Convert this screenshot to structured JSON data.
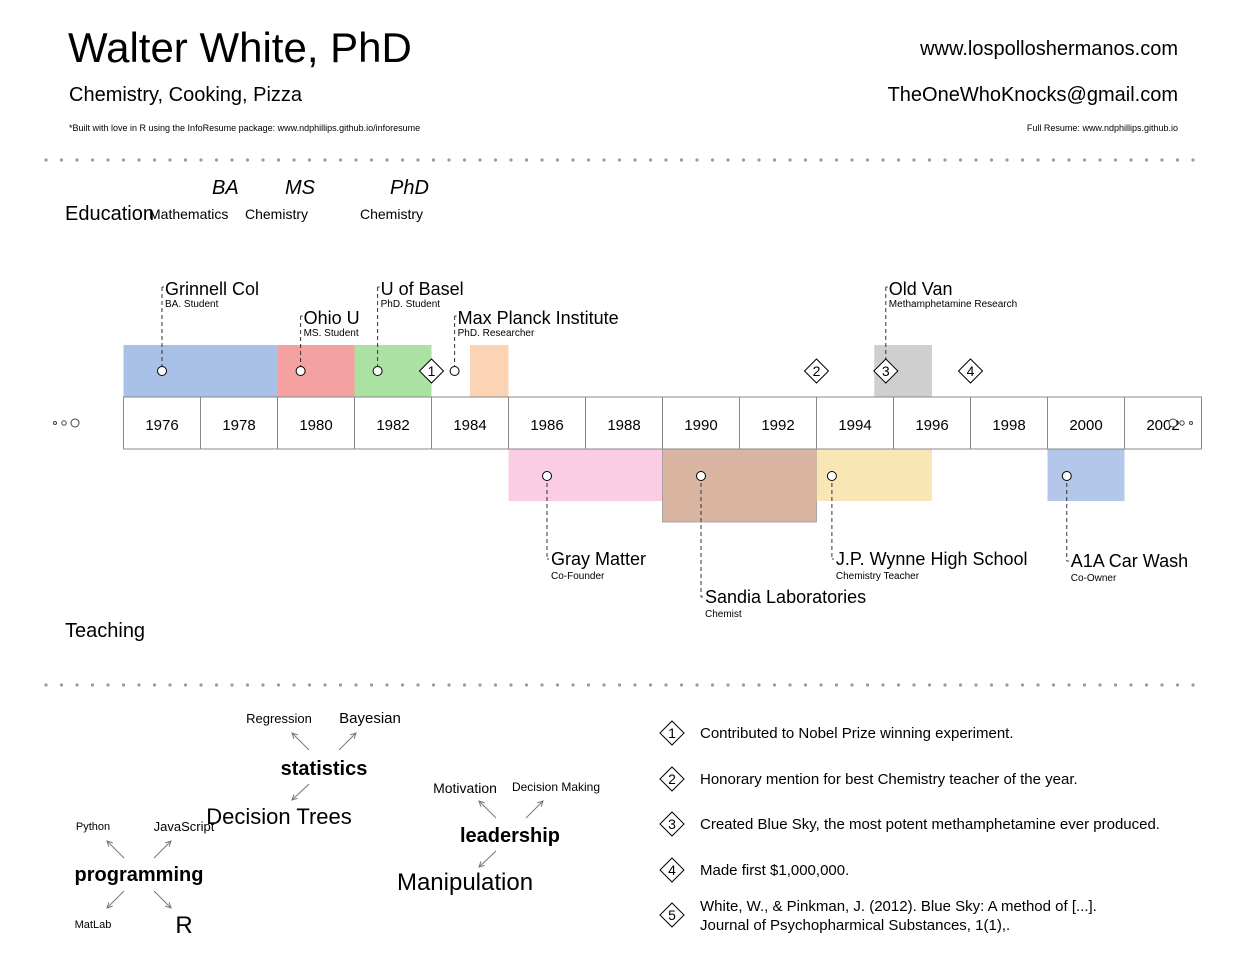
{
  "header": {
    "name": "Walter White, PhD",
    "interests": "Chemistry, Cooking, Pizza",
    "footnote": "*Built with love in R using the InfoResume package: www.ndphillips.github.io/inforesume",
    "website": "www.lospolloshermanos.com",
    "email": "TheOneWhoKnocks@gmail.com",
    "full_resume": "Full Resume: www.ndphillips.github.io"
  },
  "education": {
    "label": "Education",
    "degrees": [
      {
        "degree": "BA",
        "field": "Mathematics"
      },
      {
        "degree": "MS",
        "field": "Chemistry"
      },
      {
        "degree": "PhD",
        "field": "Chemistry"
      }
    ]
  },
  "teaching": {
    "label": "Teaching"
  },
  "timeline": {
    "years": [
      "1976",
      "1978",
      "1980",
      "1982",
      "1984",
      "1986",
      "1988",
      "1990",
      "1992",
      "1994",
      "1996",
      "1998",
      "2000",
      "2002"
    ],
    "upper": [
      {
        "title": "Grinnell Col",
        "role": "BA. Student",
        "start": 1976,
        "end": 1980,
        "marker": 1977,
        "label_tier": 0,
        "color": "#a4bde6"
      },
      {
        "title": "Ohio U",
        "role": "MS. Student",
        "start": 1980,
        "end": 1982,
        "marker": 1980.6,
        "label_tier": 1,
        "color": "#f59c9c"
      },
      {
        "title": "U of Basel",
        "role": "PhD. Student",
        "start": 1982,
        "end": 1984,
        "marker": 1982.6,
        "label_tier": 0,
        "color": "#a8df9f"
      },
      {
        "title": "Max Planck Institute",
        "role": "PhD. Researcher",
        "start": 1985,
        "end": 1986,
        "marker": 1984.6,
        "label_tier": 1,
        "color": "#fbd2b1"
      },
      {
        "title": "Old Van",
        "role": "Methamphetamine Research",
        "start": 1995.5,
        "end": 1997,
        "marker": 1995.8,
        "label_tier": 0,
        "color": "#cccccc"
      }
    ],
    "lower": [
      {
        "title": "Gray Matter",
        "role": "Co-Founder",
        "start": 1986,
        "end": 1990,
        "marker": 1987,
        "label_tier": 0,
        "color": "#f9c4e1"
      },
      {
        "title": "Sandia Laboratories",
        "role": "Chemist",
        "start": 1990,
        "end": 1994,
        "marker": 1991,
        "label_tier": 1,
        "color": "#d3a892"
      },
      {
        "title": "J.P. Wynne High School",
        "role": "Chemistry Teacher",
        "start": 1994,
        "end": 1997,
        "marker": 1994.4,
        "label_tier": 0,
        "color": "#f7e2a8"
      },
      {
        "title": "A1A Car Wash",
        "role": "Co-Owner",
        "start": 2000,
        "end": 2002,
        "marker": 2000.5,
        "label_tier": 0,
        "color": "#a4bde6"
      }
    ],
    "milestones": [
      {
        "number": "1",
        "year": 1984
      },
      {
        "number": "2",
        "year": 1994
      },
      {
        "number": "3",
        "year": 1995.8
      },
      {
        "number": "4",
        "year": 1998
      }
    ]
  },
  "skills": [
    {
      "name": "statistics",
      "items": [
        "Regression",
        "Bayesian",
        "Decision Trees"
      ]
    },
    {
      "name": "leadership",
      "items": [
        "Motivation",
        "Decision Making",
        "Manipulation"
      ]
    },
    {
      "name": "programming",
      "items": [
        "Python",
        "JavaScript",
        "MatLab",
        "R"
      ]
    }
  ],
  "accomplishments": [
    {
      "number": "1",
      "lines": [
        "Contributed to Nobel Prize winning experiment."
      ]
    },
    {
      "number": "2",
      "lines": [
        "Honorary mention for best Chemistry teacher of the year."
      ]
    },
    {
      "number": "3",
      "lines": [
        "Created Blue Sky, the most potent methamphetamine ever produced."
      ]
    },
    {
      "number": "4",
      "lines": [
        "Made first $1,000,000."
      ]
    },
    {
      "number": "5",
      "lines": [
        "White, W., & Pinkman, J. (2012). Blue Sky: A method of [...].",
        "Journal of Psychopharmical Substances, 1(1),."
      ]
    }
  ]
}
